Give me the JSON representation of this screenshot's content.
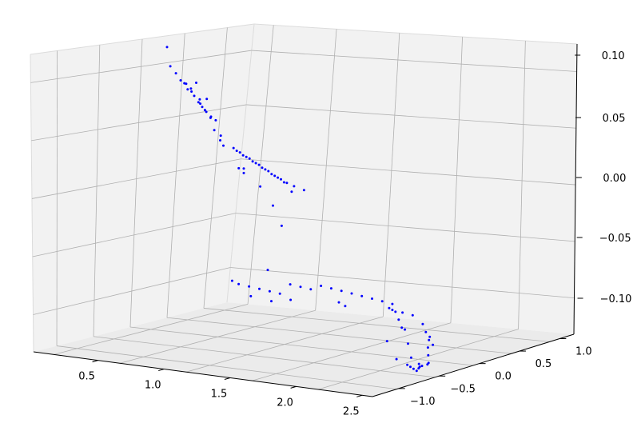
{
  "chart_data": {
    "type": "scatter3d",
    "title": "",
    "xlabel": "",
    "ylabel": "",
    "zlabel": "",
    "grid": true,
    "legend": null,
    "colors": {
      "points": "#0000ff",
      "pane": "#f2f2f2",
      "pane_floor": "#ebebeb",
      "grid": "#b0b0b0",
      "axis": "#000000"
    },
    "x_ticks": [
      "0.5",
      "1.0",
      "1.5",
      "2.0",
      "2.5"
    ],
    "y_ticks": [
      "−1.0",
      "−0.5",
      "0.0",
      "0.5",
      "1.0"
    ],
    "z_ticks": [
      "0.10",
      "0.05",
      "0.00",
      "−0.05",
      "−0.10"
    ],
    "x_range": [
      0.3,
      2.75
    ],
    "y_range": [
      -1.3,
      1.3
    ],
    "z_range": [
      -0.13,
      0.11
    ],
    "view": "3d perspective, elevated, rotated",
    "series": [
      {
        "marker": "point",
        "points": [
          [
            0.35,
            0.4,
            0.1
          ],
          [
            0.4,
            0.35,
            0.085
          ],
          [
            0.45,
            0.33,
            0.08
          ],
          [
            0.5,
            0.3,
            0.075
          ],
          [
            0.55,
            0.28,
            0.073
          ],
          [
            0.6,
            0.25,
            0.07
          ],
          [
            0.62,
            0.22,
            0.068
          ],
          [
            0.65,
            0.2,
            0.065
          ],
          [
            0.7,
            0.18,
            0.063
          ],
          [
            0.72,
            0.15,
            0.06
          ],
          [
            0.75,
            0.12,
            0.058
          ],
          [
            0.78,
            0.1,
            0.056
          ],
          [
            0.8,
            0.08,
            0.055
          ],
          [
            0.85,
            0.05,
            0.052
          ],
          [
            0.9,
            0.02,
            0.05
          ],
          [
            0.5,
            0.35,
            0.072
          ],
          [
            0.55,
            0.3,
            0.068
          ],
          [
            0.6,
            0.32,
            0.074
          ],
          [
            0.68,
            0.2,
            0.06
          ],
          [
            0.75,
            0.18,
            0.064
          ],
          [
            0.82,
            0.1,
            0.05
          ],
          [
            0.9,
            0.0,
            0.042
          ],
          [
            1.0,
            -0.1,
            0.04
          ],
          [
            1.05,
            -0.2,
            0.038
          ],
          [
            1.1,
            -0.25,
            0.035
          ],
          [
            1.2,
            -0.3,
            0.035
          ],
          [
            1.25,
            -0.35,
            0.034
          ],
          [
            1.3,
            -0.4,
            0.034
          ],
          [
            1.35,
            -0.45,
            0.033
          ],
          [
            1.4,
            -0.5,
            0.033
          ],
          [
            1.45,
            -0.55,
            0.033
          ],
          [
            1.5,
            -0.6,
            0.032
          ],
          [
            1.55,
            -0.65,
            0.032
          ],
          [
            1.6,
            -0.7,
            0.032
          ],
          [
            1.65,
            -0.75,
            0.031
          ],
          [
            1.7,
            -0.8,
            0.031
          ],
          [
            1.75,
            -0.85,
            0.031
          ],
          [
            1.8,
            -0.9,
            0.03
          ],
          [
            1.85,
            -0.95,
            0.03
          ],
          [
            1.9,
            -1.0,
            0.03
          ],
          [
            1.95,
            -1.05,
            0.03
          ],
          [
            2.0,
            -1.1,
            0.029
          ],
          [
            1.3,
            -0.35,
            0.02
          ],
          [
            1.5,
            -0.5,
            0.01
          ],
          [
            1.7,
            -0.7,
            0.0
          ],
          [
            1.9,
            -0.95,
            -0.01
          ],
          [
            2.0,
            -1.0,
            0.02
          ],
          [
            1.4,
            -0.6,
            0.025
          ],
          [
            1.6,
            -0.9,
            0.028
          ],
          [
            2.1,
            -1.15,
            0.028
          ],
          [
            2.2,
            -1.2,
            0.027
          ],
          [
            1.8,
            -0.7,
            0.02
          ],
          [
            0.6,
            0.8,
            -0.1
          ],
          [
            0.7,
            0.7,
            -0.1
          ],
          [
            0.8,
            0.65,
            -0.1
          ],
          [
            0.9,
            0.6,
            -0.1
          ],
          [
            1.0,
            0.55,
            -0.1
          ],
          [
            1.1,
            0.5,
            -0.1
          ],
          [
            1.2,
            0.45,
            -0.09
          ],
          [
            1.3,
            0.4,
            -0.09
          ],
          [
            1.4,
            0.35,
            -0.09
          ],
          [
            1.5,
            0.3,
            -0.085
          ],
          [
            1.6,
            0.25,
            -0.085
          ],
          [
            1.7,
            0.2,
            -0.085
          ],
          [
            1.8,
            0.15,
            -0.085
          ],
          [
            1.9,
            0.1,
            -0.085
          ],
          [
            2.0,
            0.05,
            -0.085
          ],
          [
            2.1,
            0.0,
            -0.085
          ],
          [
            2.2,
            -0.05,
            -0.085
          ],
          [
            2.3,
            -0.1,
            -0.09
          ],
          [
            2.4,
            -0.15,
            -0.09
          ],
          [
            2.5,
            -0.2,
            -0.095
          ],
          [
            2.55,
            -0.25,
            -0.1
          ],
          [
            2.6,
            -0.3,
            -0.105
          ],
          [
            2.62,
            -0.35,
            -0.11
          ],
          [
            2.65,
            -0.4,
            -0.115
          ],
          [
            2.68,
            -0.45,
            -0.12
          ],
          [
            2.7,
            -0.5,
            -0.12
          ],
          [
            2.55,
            -0.2,
            -0.105
          ],
          [
            2.6,
            -0.25,
            -0.11
          ],
          [
            2.5,
            -0.35,
            -0.12
          ],
          [
            2.45,
            -0.3,
            -0.11
          ],
          [
            2.4,
            -0.25,
            -0.1
          ],
          [
            2.35,
            -0.2,
            -0.1
          ],
          [
            2.3,
            -0.15,
            -0.095
          ],
          [
            2.25,
            -0.1,
            -0.09
          ],
          [
            2.2,
            -0.05,
            -0.09
          ],
          [
            2.15,
            0.0,
            -0.09
          ],
          [
            2.5,
            -0.4,
            -0.125
          ],
          [
            2.55,
            -0.45,
            -0.125
          ],
          [
            2.6,
            -0.5,
            -0.125
          ],
          [
            2.65,
            -0.55,
            -0.125
          ],
          [
            2.7,
            -0.6,
            -0.12
          ],
          [
            2.72,
            -0.65,
            -0.12
          ],
          [
            2.75,
            -0.7,
            -0.115
          ],
          [
            2.8,
            -0.75,
            -0.115
          ],
          [
            2.3,
            -0.3,
            -0.11
          ],
          [
            2.45,
            -0.45,
            -0.12
          ],
          [
            1.2,
            0.2,
            -0.1
          ],
          [
            0.8,
            0.9,
            -0.09
          ],
          [
            1.0,
            0.3,
            -0.1
          ],
          [
            1.5,
            -0.1,
            -0.09
          ],
          [
            2.0,
            -0.3,
            -0.085
          ],
          [
            1.9,
            -0.2,
            -0.085
          ]
        ]
      }
    ]
  }
}
